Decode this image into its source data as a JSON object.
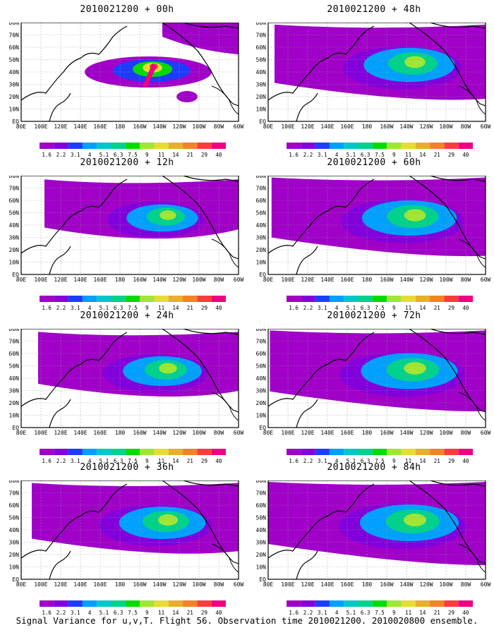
{
  "panels": [
    {
      "title": "2010021200 + 00h",
      "lead": "00h",
      "spread": 0.25
    },
    {
      "title": "2010021200 + 12h",
      "lead": "12h",
      "spread": 0.45
    },
    {
      "title": "2010021200 + 24h",
      "lead": "24h",
      "spread": 0.6
    },
    {
      "title": "2010021200 + 36h",
      "lead": "36h",
      "spread": 0.75
    },
    {
      "title": "2010021200 + 48h",
      "lead": "48h",
      "spread": 0.85
    },
    {
      "title": "2010021200 + 60h",
      "lead": "60h",
      "spread": 0.92
    },
    {
      "title": "2010021200 + 72h",
      "lead": "72h",
      "spread": 0.96
    },
    {
      "title": "2010021200 + 84h",
      "lead": "84h",
      "spread": 1.0
    }
  ],
  "map": {
    "lon_labels": [
      "80E",
      "100E",
      "120E",
      "140E",
      "160E",
      "180",
      "160W",
      "140W",
      "120W",
      "100W",
      "80W",
      "60W"
    ],
    "lat_labels": [
      "80N",
      "70N",
      "60N",
      "50N",
      "40N",
      "30N",
      "20N",
      "10N",
      "EQ"
    ],
    "grid": true
  },
  "colorbar": {
    "levels": [
      "1.6",
      "2.2",
      "3.1",
      "4",
      "5.1",
      "6.3",
      "7.5",
      "9",
      "11",
      "14",
      "21",
      "29",
      "40"
    ],
    "colors": [
      "#a000c8",
      "#8200dc",
      "#1e3cff",
      "#00a0ff",
      "#00c8c8",
      "#00d28c",
      "#00dc00",
      "#a0e632",
      "#e6dc32",
      "#e6af2d",
      "#f08228",
      "#fa3c3c",
      "#f00082"
    ]
  },
  "footer": "Signal Variance for u,v,T. Flight 56. Observation time 2010021200. 2010020800 ensemble."
}
